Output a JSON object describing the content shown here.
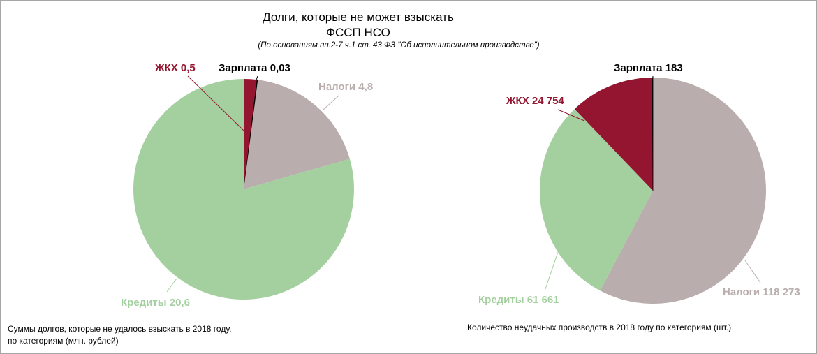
{
  "title_line1": "Долги, которые не может взыскать",
  "title_line2": "ФССП НСО",
  "subtitle": "(По основаниям пп.2-7 ч.1 ст. 43 ФЗ \"Об исполнительном производстве\")",
  "colors": {
    "zhkh": "#93152f",
    "zarplata": "#000000",
    "nalogi": "#b9adad",
    "kredity": "#a3d09e"
  },
  "chart_data": [
    {
      "type": "pie",
      "caption_line1": "Суммы долгов, которые не удалось взыскать в 2018 году,",
      "caption_line2": "по категориям (млн. рублей)",
      "slices": [
        {
          "name": "ЖКХ",
          "value": 0.5,
          "label": "ЖКХ 0,5",
          "color": "#93152f"
        },
        {
          "name": "Зарплата",
          "value": 0.03,
          "label": "Зарплата  0,03",
          "color": "#000000"
        },
        {
          "name": "Налоги",
          "value": 4.8,
          "label": "Налоги  4,8",
          "color": "#b9adad"
        },
        {
          "name": "Кредиты",
          "value": 20.6,
          "label": "Кредиты 20,6",
          "color": "#a3d09e"
        }
      ]
    },
    {
      "type": "pie",
      "caption_line1": "Количество неудачных производств в 2018 году по категориям (шт.)",
      "slices": [
        {
          "name": "Налоги",
          "value": 118273,
          "label": "Налоги  118 273",
          "color": "#b9adad"
        },
        {
          "name": "Кредиты",
          "value": 61661,
          "label": "Кредиты 61 661",
          "color": "#a3d09e"
        },
        {
          "name": "ЖКХ",
          "value": 24754,
          "label": "ЖКХ 24 754",
          "color": "#93152f"
        },
        {
          "name": "Зарплата",
          "value": 183,
          "label": "Зарплата  183",
          "color": "#000000"
        }
      ]
    }
  ]
}
